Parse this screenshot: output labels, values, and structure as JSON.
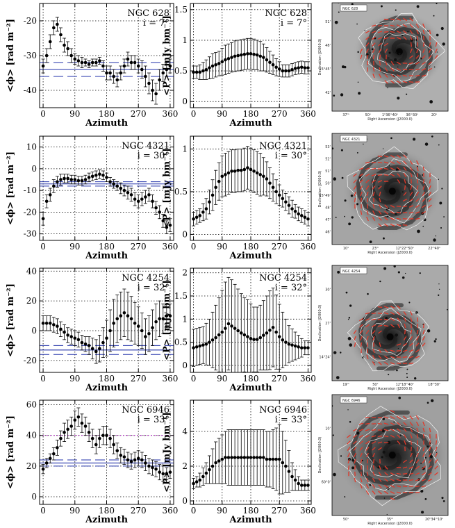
{
  "colors": {
    "ink": "#000000",
    "grid": "#000000",
    "mean_line": "#1f2fa8",
    "rm_line": "#b01cc4",
    "vector": "#e0392a",
    "contour": "#ffffff"
  },
  "chart_data": [
    {
      "type": "scatter",
      "galaxy": "NGC 628",
      "incl": "i = 7°",
      "xlabel": "Azimuth",
      "ylabel": "<ϕ> [rad m⁻²]",
      "xlim": [
        -10,
        370
      ],
      "ylim": [
        -45,
        -15
      ],
      "xticks": [
        0,
        90,
        180,
        270,
        360
      ],
      "yticks": [
        -40,
        -30,
        -20
      ],
      "grid": "dotted",
      "x": [
        0,
        10,
        20,
        30,
        40,
        50,
        60,
        70,
        80,
        90,
        100,
        110,
        120,
        130,
        140,
        150,
        160,
        170,
        180,
        190,
        200,
        210,
        220,
        230,
        240,
        250,
        260,
        270,
        280,
        290,
        300,
        310,
        320,
        330,
        340,
        350,
        360
      ],
      "y": [
        -33,
        -30,
        -26,
        -22,
        -21,
        -24,
        -27,
        -28,
        -30,
        -31,
        -31.5,
        -32,
        -32,
        -32.5,
        -32,
        -32,
        -31.5,
        -33,
        -35,
        -35,
        -36,
        -37,
        -35,
        -33,
        -31,
        -32,
        -32,
        -33,
        -34,
        -36,
        -38,
        -40,
        -41,
        -37,
        -35,
        -34,
        -33
      ],
      "err": [
        2,
        2,
        2,
        2,
        2,
        2,
        2,
        2,
        2,
        1.5,
        1.5,
        1.5,
        1,
        1,
        1,
        1,
        1,
        1.5,
        2,
        2,
        2,
        2,
        2,
        2,
        2,
        2,
        2,
        2,
        2.5,
        3,
        3,
        3,
        3,
        3,
        2.5,
        2,
        2
      ],
      "mean": -34,
      "band": [
        -36,
        -32
      ],
      "rm_line": null
    },
    {
      "type": "scatter",
      "galaxy": "NGC 628",
      "incl": "i = 7°",
      "xlabel": "Azimuth",
      "ylabel": "<P> [mJy bm⁻¹]",
      "xlim": [
        -10,
        370
      ],
      "ylim": [
        -0.1,
        1.6
      ],
      "xticks": [
        0,
        90,
        180,
        270,
        360
      ],
      "yticks": [
        0,
        0.5,
        1,
        1.5
      ],
      "grid": "dotted",
      "x": [
        0,
        10,
        20,
        30,
        40,
        50,
        60,
        70,
        80,
        90,
        100,
        110,
        120,
        130,
        140,
        150,
        160,
        170,
        180,
        190,
        200,
        210,
        220,
        230,
        240,
        250,
        260,
        270,
        280,
        290,
        300,
        310,
        320,
        330,
        340,
        350,
        360
      ],
      "y": [
        0.48,
        0.48,
        0.48,
        0.5,
        0.52,
        0.55,
        0.58,
        0.6,
        0.62,
        0.65,
        0.68,
        0.7,
        0.72,
        0.74,
        0.75,
        0.76,
        0.77,
        0.78,
        0.78,
        0.77,
        0.76,
        0.74,
        0.72,
        0.68,
        0.64,
        0.6,
        0.56,
        0.53,
        0.5,
        0.5,
        0.5,
        0.52,
        0.54,
        0.55,
        0.56,
        0.55,
        0.55
      ],
      "err": [
        0.1,
        0.1,
        0.12,
        0.14,
        0.16,
        0.18,
        0.2,
        0.2,
        0.2,
        0.22,
        0.24,
        0.24,
        0.24,
        0.25,
        0.25,
        0.25,
        0.25,
        0.25,
        0.25,
        0.25,
        0.24,
        0.24,
        0.22,
        0.2,
        0.18,
        0.16,
        0.14,
        0.12,
        0.1,
        0.1,
        0.1,
        0.1,
        0.1,
        0.1,
        0.1,
        0.1,
        0.1
      ],
      "mean": null,
      "band": null,
      "rm_line": null
    },
    {
      "type": "scatter",
      "galaxy": "NGC 4321",
      "incl": "i = 30°",
      "xlabel": "Azimuth",
      "ylabel": "<ϕ> [rad m⁻²]",
      "xlim": [
        -10,
        370
      ],
      "ylim": [
        -33,
        15
      ],
      "xticks": [
        0,
        90,
        180,
        270,
        360
      ],
      "yticks": [
        -30,
        -20,
        -10,
        0,
        10
      ],
      "grid": "dotted",
      "x": [
        0,
        10,
        20,
        30,
        40,
        50,
        60,
        70,
        80,
        90,
        100,
        110,
        120,
        130,
        140,
        150,
        160,
        170,
        180,
        190,
        200,
        210,
        220,
        230,
        240,
        250,
        260,
        270,
        280,
        290,
        300,
        310,
        320,
        330,
        340,
        350,
        360
      ],
      "y": [
        -23,
        -15,
        -12,
        -8,
        -6,
        -5,
        -4.5,
        -4.5,
        -5,
        -5,
        -5.5,
        -5.5,
        -5,
        -4,
        -3.5,
        -3,
        -2.5,
        -3,
        -4,
        -6,
        -7,
        -8,
        -9,
        -10,
        -11,
        -12,
        -14,
        -15,
        -14,
        -13,
        -12,
        -15,
        -18,
        -20,
        -24,
        -27,
        -26
      ],
      "err": [
        3,
        3,
        3,
        3,
        2.5,
        2.5,
        2,
        2,
        2,
        2,
        2,
        2,
        2,
        2,
        2,
        2,
        2,
        2,
        2,
        2,
        2,
        2,
        2.5,
        2.5,
        3,
        3,
        3,
        3,
        3,
        3,
        3,
        3,
        3,
        3,
        3,
        3,
        3
      ],
      "mean": -7,
      "band": [
        -8,
        -6
      ],
      "rm_line": null
    },
    {
      "type": "scatter",
      "galaxy": "NGC 4321",
      "incl": "i = 30°",
      "xlabel": "Azimuth",
      "ylabel": "<P> [mJy bm⁻¹]",
      "xlim": [
        -10,
        370
      ],
      "ylim": [
        -0.07,
        1.15
      ],
      "xticks": [
        0,
        90,
        180,
        270,
        360
      ],
      "yticks": [
        0,
        0.5,
        1
      ],
      "grid": "dotted",
      "x": [
        0,
        10,
        20,
        30,
        40,
        50,
        60,
        70,
        80,
        90,
        100,
        110,
        120,
        130,
        140,
        150,
        160,
        170,
        180,
        190,
        200,
        210,
        220,
        230,
        240,
        250,
        260,
        270,
        280,
        290,
        300,
        310,
        320,
        330,
        340,
        350,
        360
      ],
      "y": [
        0.18,
        0.2,
        0.22,
        0.26,
        0.3,
        0.38,
        0.46,
        0.55,
        0.62,
        0.68,
        0.7,
        0.72,
        0.74,
        0.74,
        0.75,
        0.75,
        0.76,
        0.78,
        0.76,
        0.74,
        0.72,
        0.7,
        0.68,
        0.65,
        0.6,
        0.55,
        0.5,
        0.46,
        0.42,
        0.38,
        0.34,
        0.3,
        0.27,
        0.24,
        0.22,
        0.2,
        0.18
      ],
      "err": [
        0.08,
        0.08,
        0.08,
        0.1,
        0.12,
        0.14,
        0.18,
        0.2,
        0.22,
        0.24,
        0.25,
        0.25,
        0.25,
        0.25,
        0.25,
        0.25,
        0.25,
        0.25,
        0.25,
        0.25,
        0.25,
        0.25,
        0.22,
        0.2,
        0.18,
        0.16,
        0.14,
        0.12,
        0.1,
        0.1,
        0.1,
        0.1,
        0.08,
        0.08,
        0.08,
        0.08,
        0.08
      ],
      "mean": null,
      "band": null,
      "rm_line": null
    },
    {
      "type": "scatter",
      "galaxy": "NGC 4254",
      "incl": "i = 32°",
      "xlabel": "Azimuth",
      "ylabel": "<ϕ> [rad m⁻²]",
      "xlim": [
        -10,
        370
      ],
      "ylim": [
        -28,
        42
      ],
      "xticks": [
        0,
        90,
        180,
        270,
        360
      ],
      "yticks": [
        -20,
        0,
        20,
        40
      ],
      "grid": "dotted",
      "x": [
        0,
        10,
        20,
        30,
        40,
        50,
        60,
        70,
        80,
        90,
        100,
        110,
        120,
        130,
        140,
        150,
        160,
        170,
        180,
        190,
        200,
        210,
        220,
        230,
        240,
        250,
        260,
        270,
        280,
        290,
        300,
        310,
        320,
        330,
        340,
        350,
        360
      ],
      "y": [
        5,
        5,
        5,
        4,
        3,
        1,
        -1,
        -3,
        -4,
        -5,
        -6,
        -8,
        -9,
        -10,
        -12,
        -14,
        -12,
        -8,
        -5,
        0,
        5,
        8,
        10,
        12,
        10,
        8,
        5,
        3,
        0,
        -4,
        -2,
        2,
        6,
        8,
        8,
        10,
        10
      ],
      "err": [
        5,
        5,
        5,
        5,
        5,
        5,
        5,
        5,
        5,
        5,
        5,
        5,
        5,
        6,
        7,
        8,
        9,
        10,
        12,
        14,
        16,
        16,
        16,
        16,
        16,
        15,
        14,
        13,
        12,
        12,
        12,
        12,
        12,
        12,
        10,
        8,
        8
      ],
      "mean": -13,
      "band": [
        -16,
        -10
      ],
      "rm_line": null
    },
    {
      "type": "scatter",
      "galaxy": "NGC 4254",
      "incl": "i = 32°",
      "xlabel": "Azimuth",
      "ylabel": "<P> [mJy bm⁻¹]",
      "xlim": [
        -10,
        370
      ],
      "ylim": [
        -0.15,
        2.1
      ],
      "xticks": [
        0,
        90,
        180,
        270,
        360
      ],
      "yticks": [
        0,
        0.5,
        1,
        1.5,
        2
      ],
      "grid": "dotted",
      "x": [
        0,
        10,
        20,
        30,
        40,
        50,
        60,
        70,
        80,
        90,
        100,
        110,
        120,
        130,
        140,
        150,
        160,
        170,
        180,
        190,
        200,
        210,
        220,
        230,
        240,
        250,
        260,
        270,
        280,
        290,
        300,
        310,
        320,
        330,
        340,
        350,
        360
      ],
      "y": [
        0.38,
        0.4,
        0.42,
        0.44,
        0.46,
        0.5,
        0.55,
        0.6,
        0.66,
        0.72,
        0.8,
        0.9,
        0.85,
        0.8,
        0.75,
        0.7,
        0.66,
        0.62,
        0.58,
        0.56,
        0.56,
        0.6,
        0.65,
        0.7,
        0.76,
        0.82,
        0.72,
        0.62,
        0.55,
        0.5,
        0.46,
        0.44,
        0.42,
        0.4,
        0.38,
        0.38,
        0.38
      ],
      "err": [
        0.4,
        0.4,
        0.4,
        0.4,
        0.45,
        0.5,
        0.6,
        0.7,
        0.8,
        0.9,
        1.0,
        1.0,
        1.0,
        0.95,
        0.9,
        0.85,
        0.8,
        0.8,
        0.75,
        0.7,
        0.7,
        0.7,
        0.75,
        0.8,
        0.85,
        0.85,
        0.8,
        0.7,
        0.6,
        0.5,
        0.4,
        0.35,
        0.3,
        0.25,
        0.2,
        0.15,
        0.15
      ],
      "mean": null,
      "band": null,
      "rm_line": null
    },
    {
      "type": "scatter",
      "galaxy": "NGC 6946",
      "incl": "i = 33°",
      "xlabel": "Azimuth",
      "ylabel": "<ϕ> [rad m⁻²]",
      "xlim": [
        -10,
        370
      ],
      "ylim": [
        -5,
        63
      ],
      "xticks": [
        0,
        90,
        180,
        270,
        360
      ],
      "yticks": [
        0,
        20,
        40,
        60
      ],
      "grid": "dotted",
      "x": [
        0,
        10,
        20,
        30,
        40,
        50,
        60,
        70,
        80,
        90,
        100,
        110,
        120,
        130,
        140,
        150,
        160,
        170,
        180,
        190,
        200,
        210,
        220,
        230,
        240,
        250,
        260,
        270,
        280,
        290,
        300,
        310,
        320,
        330,
        340,
        350,
        360
      ],
      "y": [
        18,
        22,
        25,
        28,
        32,
        38,
        42,
        44,
        46,
        50,
        52,
        48,
        46,
        42,
        38,
        34,
        38,
        40,
        40,
        38,
        34,
        30,
        27,
        26,
        24,
        23,
        24,
        25,
        24,
        22,
        20,
        19,
        18,
        16,
        15,
        15,
        16
      ],
      "err": [
        3,
        3,
        3,
        4,
        5,
        5,
        6,
        6,
        6,
        6,
        6,
        6,
        6,
        6,
        6,
        6,
        6,
        6,
        6,
        6,
        6,
        5,
        5,
        5,
        5,
        5,
        5,
        5,
        5,
        5,
        5,
        5,
        5,
        5,
        5,
        4,
        4
      ],
      "mean": 22,
      "band": [
        20,
        24
      ],
      "rm_line": 40
    },
    {
      "type": "scatter",
      "galaxy": "NGC 6946",
      "incl": "i = 33°",
      "xlabel": "Azimuth",
      "ylabel": "<P> [mJy bm⁻¹]",
      "xlim": [
        -10,
        370
      ],
      "ylim": [
        -0.2,
        5.8
      ],
      "xticks": [
        0,
        90,
        180,
        270,
        360
      ],
      "yticks": [
        0,
        2,
        4
      ],
      "grid": "dotted",
      "x": [
        0,
        10,
        20,
        30,
        40,
        50,
        60,
        70,
        80,
        90,
        100,
        110,
        120,
        130,
        140,
        150,
        160,
        170,
        180,
        190,
        200,
        210,
        220,
        230,
        240,
        250,
        260,
        270,
        280,
        290,
        300,
        310,
        320,
        330,
        340,
        350,
        360
      ],
      "y": [
        1.0,
        1.1,
        1.2,
        1.4,
        1.6,
        1.8,
        2.0,
        2.2,
        2.3,
        2.4,
        2.5,
        2.5,
        2.5,
        2.5,
        2.5,
        2.5,
        2.5,
        2.5,
        2.5,
        2.5,
        2.5,
        2.5,
        2.5,
        2.4,
        2.4,
        2.4,
        2.4,
        2.4,
        2.2,
        2.0,
        1.7,
        1.4,
        1.2,
        1.0,
        0.9,
        0.9,
        0.9
      ],
      "err": [
        0.3,
        0.3,
        0.4,
        0.5,
        0.6,
        0.8,
        1.0,
        1.2,
        1.3,
        1.4,
        1.5,
        1.6,
        1.6,
        1.6,
        1.6,
        1.6,
        1.6,
        1.6,
        1.6,
        1.6,
        1.6,
        1.6,
        1.6,
        1.6,
        1.6,
        1.7,
        1.8,
        2.0,
        1.8,
        1.5,
        1.2,
        0.8,
        0.6,
        0.4,
        0.3,
        0.3,
        0.3
      ],
      "mean": null,
      "band": null,
      "rm_line": null
    }
  ],
  "images": [
    {
      "tag": "NGC 628",
      "xlabel": "Right Ascension (J2000.0)",
      "ylabel": "Declination (J2000.0)",
      "xticks": [
        "37ᵐ",
        "50ˢ",
        "1ʰ36ᵐ40ˢ",
        "36ᵐ30ˢ",
        "20ˢ"
      ],
      "yticks": [
        "51'",
        "48'",
        "15°45'",
        "42'"
      ],
      "center": [
        0.58,
        0.45
      ],
      "radius": 0.34,
      "star_seed": 7,
      "sky": 175
    },
    {
      "tag": "NGC 4321",
      "xlabel": "Right Ascension (J2000.0)",
      "ylabel": "Declination (J2000.0)",
      "xticks": [
        "10ˢ",
        "23ᵐ",
        "12ʰ22ᵐ50ˢ",
        "22ᵐ40ˢ"
      ],
      "yticks": [
        "53'",
        "52'",
        "51'",
        "50'",
        "15°49'",
        "48'",
        "47'",
        "46'"
      ],
      "center": [
        0.52,
        0.52
      ],
      "radius": 0.36,
      "star_seed": 11,
      "sky": 165
    },
    {
      "tag": "NGC 4254",
      "xlabel": "Right Ascension (J2000.0)",
      "ylabel": "Declination (J2000.0)",
      "xticks": [
        "19ᵐ",
        "50ˢ",
        "12ʰ18ᵐ40ˢ",
        "18ᵐ30ˢ"
      ],
      "yticks": [
        "30'",
        "27'",
        "14°24'"
      ],
      "center": [
        0.5,
        0.62
      ],
      "radius": 0.3,
      "star_seed": 19,
      "sky": 170
    },
    {
      "tag": "NGC 6946",
      "xlabel": "Right Ascension (J2000.0)",
      "ylabel": "Declination (J2000.0)",
      "xticks": [
        "50ˢ",
        "35ᵐ",
        "20ʰ34ᵐ10ˢ"
      ],
      "yticks": [
        "10'",
        "60°0'"
      ],
      "center": [
        0.52,
        0.5
      ],
      "radius": 0.4,
      "star_seed": 23,
      "sky": 160
    }
  ]
}
